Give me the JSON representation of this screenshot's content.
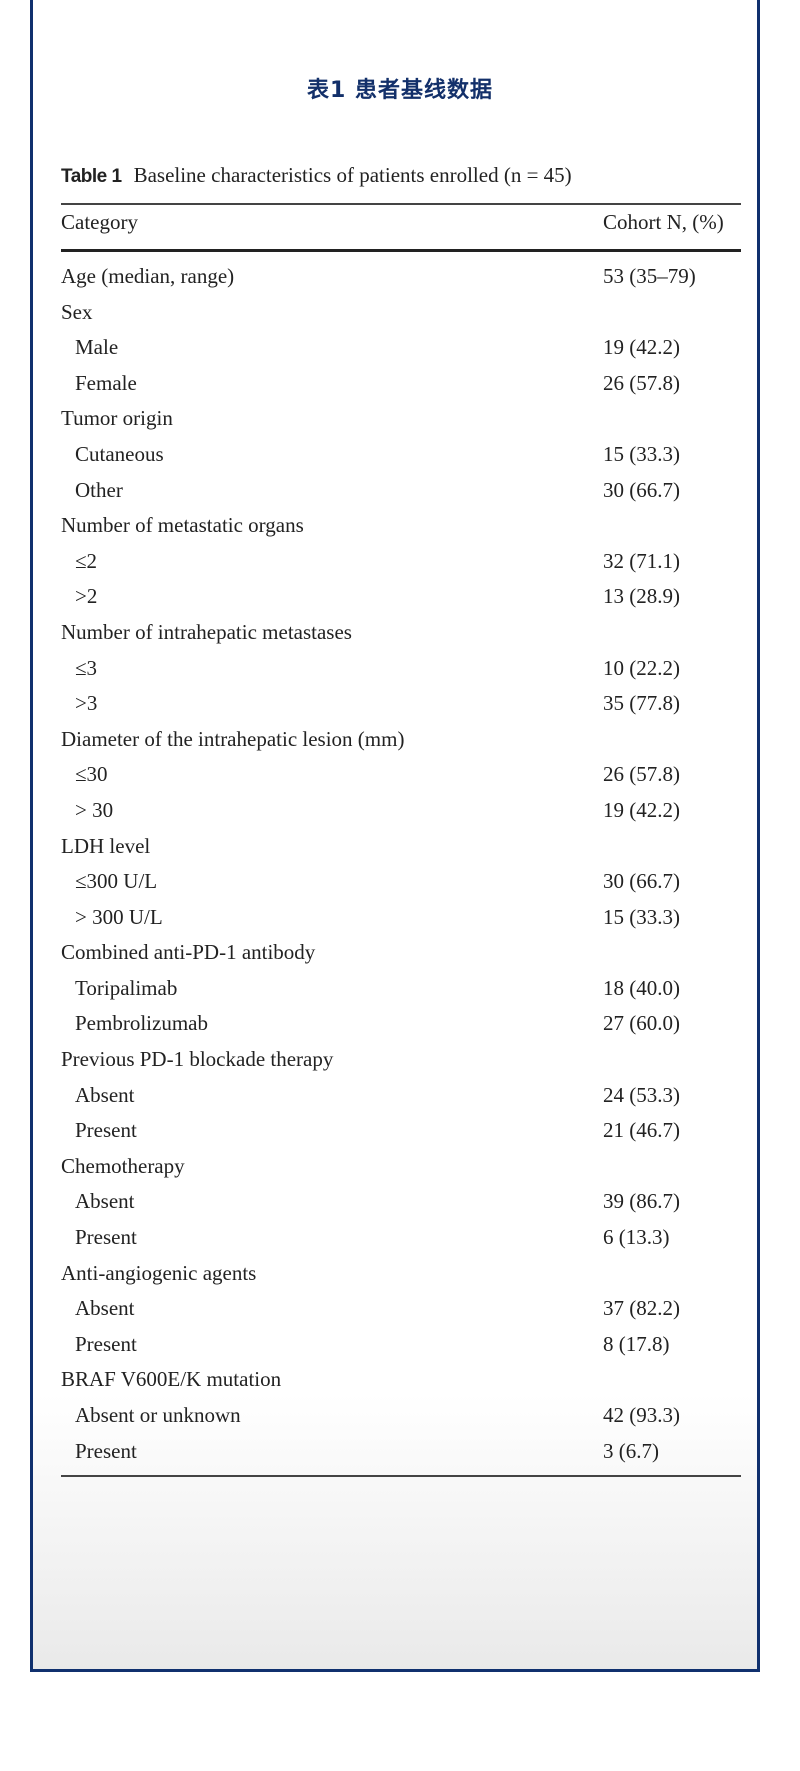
{
  "heading": "表1  患者基线数据",
  "caption": {
    "label": "Table 1",
    "text": "Baseline characteristics of patients enrolled (n = 45)"
  },
  "columns": [
    "Category",
    "Cohort N, (%)"
  ],
  "rows": [
    {
      "category": "Age (median, range)",
      "value": "53 (35–79)",
      "indent": false
    },
    {
      "category": "Sex",
      "value": "",
      "indent": false
    },
    {
      "category": "Male",
      "value": "19 (42.2)",
      "indent": true
    },
    {
      "category": "Female",
      "value": "26 (57.8)",
      "indent": true
    },
    {
      "category": "Tumor origin",
      "value": "",
      "indent": false
    },
    {
      "category": "Cutaneous",
      "value": "15 (33.3)",
      "indent": true
    },
    {
      "category": "Other",
      "value": "30 (66.7)",
      "indent": true
    },
    {
      "category": "Number of metastatic organs",
      "value": "",
      "indent": false
    },
    {
      "category": "≤2",
      "value": "32 (71.1)",
      "indent": true
    },
    {
      "category": ">2",
      "value": "13 (28.9)",
      "indent": true
    },
    {
      "category": "Number of intrahepatic metastases",
      "value": "",
      "indent": false
    },
    {
      "category": "≤3",
      "value": "10 (22.2)",
      "indent": true
    },
    {
      "category": ">3",
      "value": "35 (77.8)",
      "indent": true
    },
    {
      "category": "Diameter of the intrahepatic lesion (mm)",
      "value": "",
      "indent": false
    },
    {
      "category": "≤30",
      "value": "26 (57.8)",
      "indent": true
    },
    {
      "category": "> 30",
      "value": "19 (42.2)",
      "indent": true
    },
    {
      "category": "LDH level",
      "value": "",
      "indent": false
    },
    {
      "category": "≤300 U/L",
      "value": "30 (66.7)",
      "indent": true
    },
    {
      "category": "> 300 U/L",
      "value": "15 (33.3)",
      "indent": true
    },
    {
      "category": "Combined anti-PD-1 antibody",
      "value": "",
      "indent": false
    },
    {
      "category": "Toripalimab",
      "value": "18 (40.0)",
      "indent": true
    },
    {
      "category": "Pembrolizumab",
      "value": "27 (60.0)",
      "indent": true
    },
    {
      "category": "Previous PD-1 blockade therapy",
      "value": "",
      "indent": false
    },
    {
      "category": "Absent",
      "value": "24 (53.3)",
      "indent": true
    },
    {
      "category": "Present",
      "value": "21 (46.7)",
      "indent": true
    },
    {
      "category": "Chemotherapy",
      "value": "",
      "indent": false
    },
    {
      "category": "Absent",
      "value": "39 (86.7)",
      "indent": true
    },
    {
      "category": "Present",
      "value": "6 (13.3)",
      "indent": true
    },
    {
      "category": "Anti-angiogenic agents",
      "value": "",
      "indent": false
    },
    {
      "category": "Absent",
      "value": "37 (82.2)",
      "indent": true
    },
    {
      "category": "Present",
      "value": "8 (17.8)",
      "indent": true
    },
    {
      "category": "BRAF V600E/K mutation",
      "value": "",
      "indent": false
    },
    {
      "category": "Absent or unknown",
      "value": "42 (93.3)",
      "indent": true
    },
    {
      "category": "Present",
      "value": "3 (6.7)",
      "indent": true
    }
  ],
  "colors": {
    "frame": "#10306e",
    "heading": "#13306a"
  }
}
